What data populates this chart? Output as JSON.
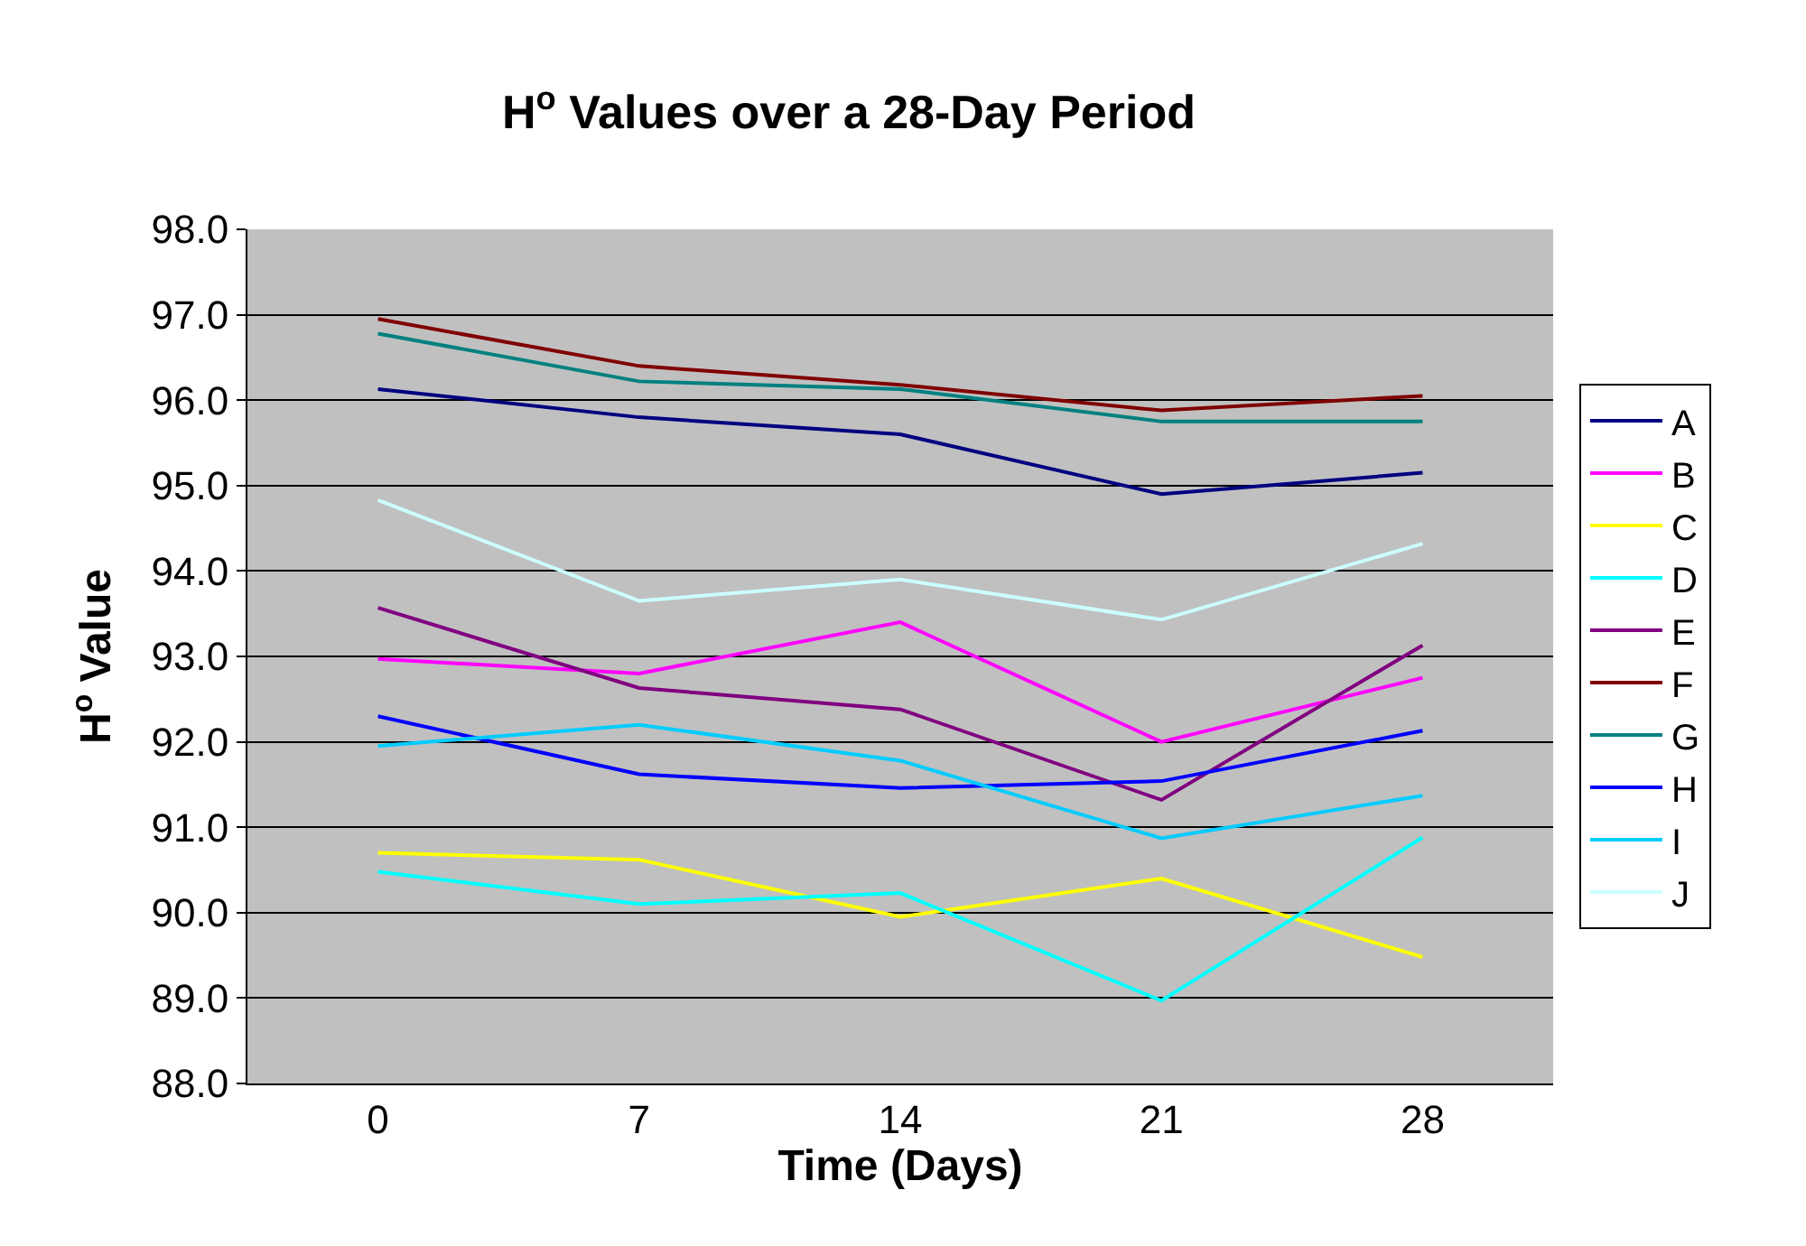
{
  "chart_data": {
    "type": "line",
    "title": "H$^{o}$ Values over a 28-Day Period",
    "xlabel": "Time (Days)",
    "ylabel": "H$^{o}$ Value",
    "categories": [
      "0",
      "7",
      "14",
      "21",
      "28"
    ],
    "series": [
      {
        "name": "A",
        "color": "#000080",
        "values": [
          96.13,
          95.8,
          95.6,
          94.9,
          95.15
        ]
      },
      {
        "name": "B",
        "color": "#ff00ff",
        "values": [
          92.97,
          92.8,
          93.4,
          92.0,
          92.75
        ]
      },
      {
        "name": "C",
        "color": "#ffff00",
        "values": [
          90.7,
          90.62,
          89.95,
          90.4,
          89.48
        ]
      },
      {
        "name": "D",
        "color": "#00ffff",
        "values": [
          90.48,
          90.1,
          90.23,
          88.97,
          90.88
        ]
      },
      {
        "name": "E",
        "color": "#800080",
        "values": [
          93.57,
          92.63,
          92.38,
          91.32,
          93.13
        ]
      },
      {
        "name": "F",
        "color": "#800000",
        "values": [
          96.95,
          96.4,
          96.18,
          95.88,
          96.05
        ]
      },
      {
        "name": "G",
        "color": "#008080",
        "values": [
          96.78,
          96.22,
          96.13,
          95.75,
          95.75
        ]
      },
      {
        "name": "H",
        "color": "#0000ff",
        "values": [
          92.3,
          91.62,
          91.46,
          91.54,
          92.13
        ]
      },
      {
        "name": "I",
        "color": "#00ccff",
        "values": [
          91.95,
          92.2,
          91.78,
          90.87,
          91.37
        ]
      },
      {
        "name": "J",
        "color": "#ccffff",
        "values": [
          94.83,
          93.65,
          93.9,
          93.43,
          94.32
        ]
      }
    ],
    "ylim": [
      88,
      98
    ],
    "yticks": [
      {
        "value": 88,
        "label": "88.0"
      },
      {
        "value": 89,
        "label": "89.0"
      },
      {
        "value": 90,
        "label": "90.0"
      },
      {
        "value": 91,
        "label": "91.0"
      },
      {
        "value": 92,
        "label": "92.0"
      },
      {
        "value": 93,
        "label": "93.0"
      },
      {
        "value": 94,
        "label": "94.0"
      },
      {
        "value": 95,
        "label": "95.0"
      },
      {
        "value": 96,
        "label": "96.0"
      },
      {
        "value": 97,
        "label": "97.0"
      },
      {
        "value": 98,
        "label": "98.0"
      }
    ],
    "grid": "y",
    "legend": "right",
    "marker": "none",
    "line_style": "solid"
  }
}
